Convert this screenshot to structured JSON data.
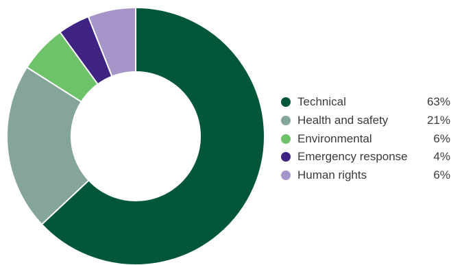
{
  "chart_data": {
    "type": "pie",
    "variant": "donut",
    "title": "",
    "legend_position": "right",
    "series": [
      {
        "name": "Technical",
        "value": 63,
        "value_label": "63%",
        "color": "#02573a"
      },
      {
        "name": "Health and safety",
        "value": 21,
        "value_label": "21%",
        "color": "#84a597"
      },
      {
        "name": "Environmental",
        "value": 6,
        "value_label": "6%",
        "color": "#6ec26a"
      },
      {
        "name": "Emergency response",
        "value": 4,
        "value_label": "4%",
        "color": "#3e2383"
      },
      {
        "name": "Human rights",
        "value": 6,
        "value_label": "6%",
        "color": "#a695c8"
      }
    ]
  }
}
